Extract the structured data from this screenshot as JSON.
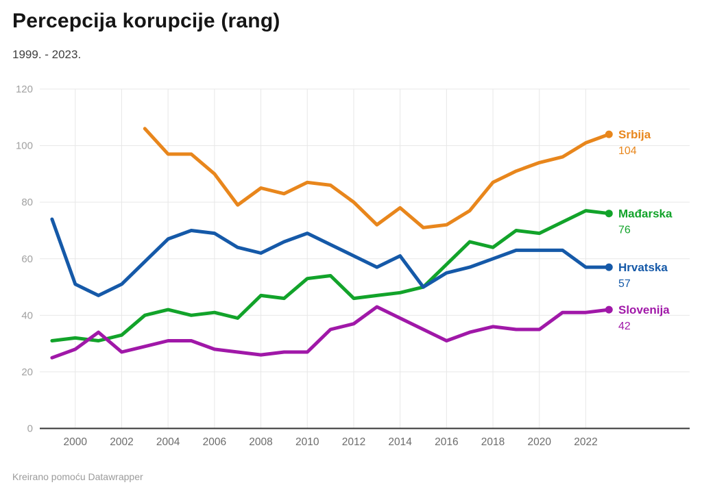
{
  "header": {
    "title": "Percepcija korupcije (rang)",
    "subtitle": "1999. - 2023."
  },
  "footer": {
    "credit": "Kreirano pomoću Datawrapper"
  },
  "colors": {
    "srbija": "#e8861c",
    "madarska": "#12a32a",
    "hrvatska": "#1559a8",
    "slovenija": "#a018a8",
    "grid": "#e7e7e7",
    "axis": "#333333",
    "y_tick": "#a1a1a1",
    "x_tick": "#6b6b6b"
  },
  "chart_data": {
    "type": "line",
    "title": "Percepcija korupcije (rang)",
    "subtitle": "1999. - 2023.",
    "xlim": [
      1999,
      2023
    ],
    "ylim": [
      0,
      120
    ],
    "grid": true,
    "legend_position": "right-end-labels",
    "y_ticks": [
      0,
      20,
      40,
      60,
      80,
      100,
      120
    ],
    "x_tick_years": [
      2000,
      2002,
      2004,
      2006,
      2008,
      2010,
      2012,
      2014,
      2016,
      2018,
      2020,
      2022
    ],
    "series": [
      {
        "name": "Srbija",
        "color": "#e8861c",
        "start_year": 2003,
        "values": [
          106,
          97,
          97,
          90,
          79,
          85,
          83,
          87,
          86,
          80,
          72,
          78,
          71,
          72,
          77,
          87,
          91,
          94,
          96,
          101,
          104
        ],
        "end_label": "104"
      },
      {
        "name": "Mađarska",
        "color": "#12a32a",
        "start_year": 1999,
        "values": [
          31,
          32,
          31,
          33,
          40,
          42,
          40,
          41,
          39,
          47,
          46,
          53,
          54,
          46,
          47,
          48,
          50,
          58,
          66,
          64,
          70,
          69,
          73,
          77,
          76
        ],
        "end_label": "76"
      },
      {
        "name": "Hrvatska",
        "color": "#1559a8",
        "start_year": 1999,
        "values": [
          74,
          51,
          47,
          51,
          59,
          67,
          70,
          69,
          64,
          62,
          66,
          69,
          65,
          61,
          57,
          61,
          50,
          55,
          57,
          60,
          63,
          63,
          63,
          57,
          57
        ],
        "end_label": "57"
      },
      {
        "name": "Slovenija",
        "color": "#a018a8",
        "start_year": 1999,
        "values": [
          25,
          28,
          34,
          27,
          29,
          31,
          31,
          28,
          27,
          26,
          27,
          27,
          35,
          37,
          43,
          39,
          35,
          31,
          34,
          36,
          35,
          35,
          41,
          41,
          42
        ],
        "end_label": "42"
      }
    ]
  }
}
